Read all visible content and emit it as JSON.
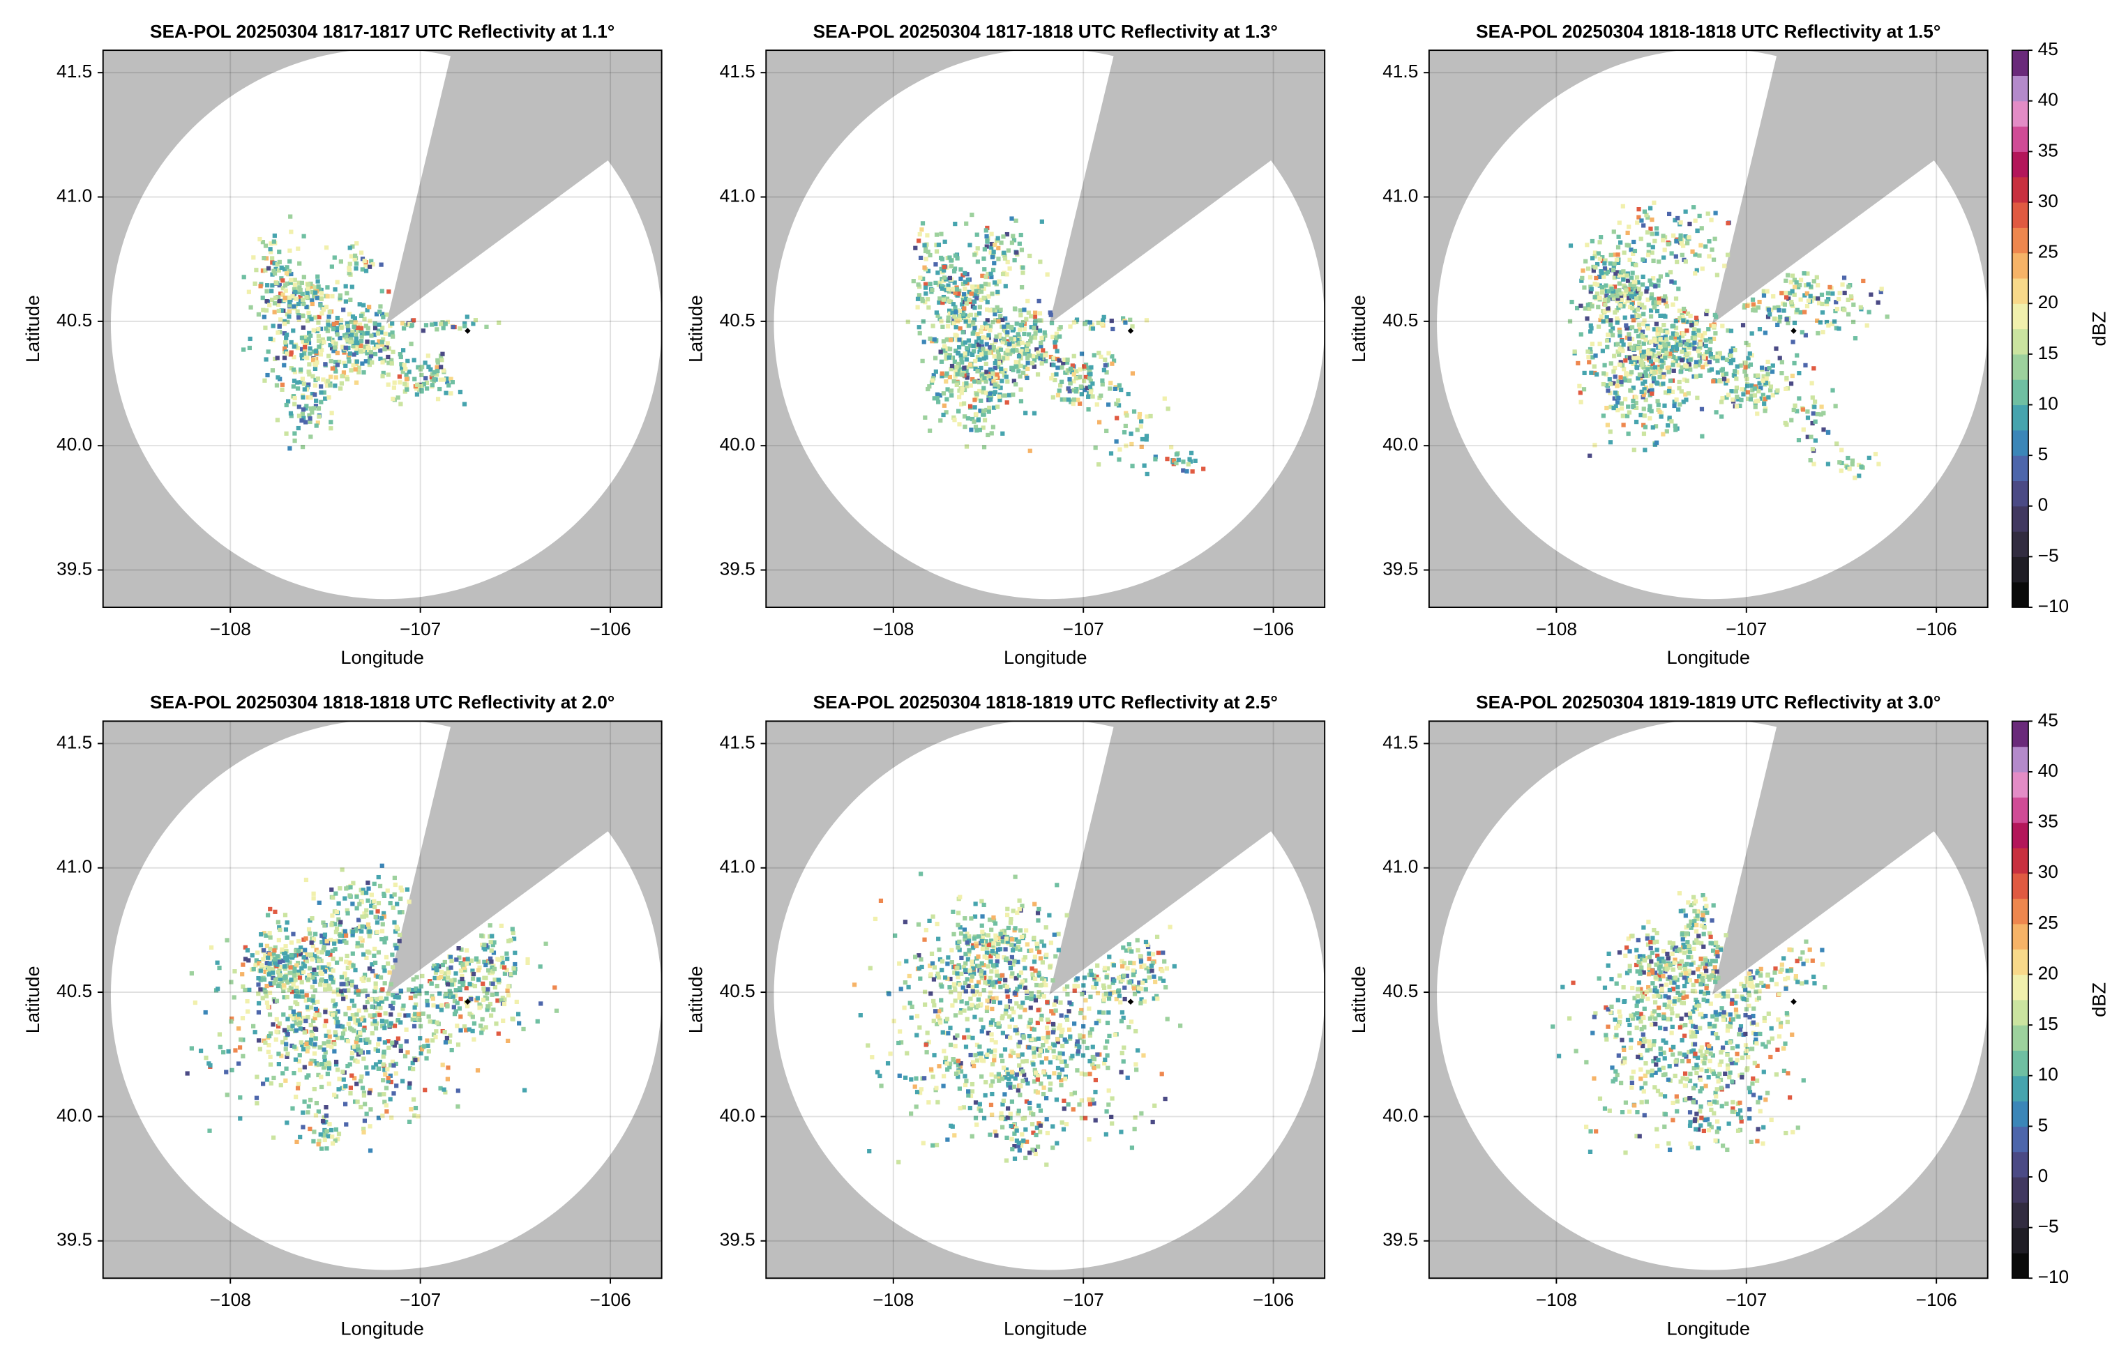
{
  "chart_data": [
    {
      "type": "radar",
      "title": "SEA-POL 20250304 1817-1817 UTC Reflectivity at 1.1°",
      "xlabel": "Longitude",
      "ylabel": "Latitude",
      "xlim": [
        -108.67,
        -105.73
      ],
      "ylim": [
        39.35,
        41.59
      ],
      "xticks": [
        {
          "value": -108,
          "label": "−108"
        },
        {
          "value": -107,
          "label": "−107"
        },
        {
          "value": -106,
          "label": "−106"
        }
      ],
      "yticks": [
        39.5,
        {
          "value": 40,
          "label": "40.0"
        },
        40.5,
        {
          "value": 41,
          "label": "41.0"
        },
        41.5
      ],
      "grid": true
    },
    {
      "type": "radar",
      "title": "SEA-POL 20250304 1817-1818 UTC Reflectivity at 1.3°",
      "xlabel": "Longitude",
      "ylabel": "Latitude",
      "xlim": [
        -108.67,
        -105.73
      ],
      "ylim": [
        39.35,
        41.59
      ],
      "xticks": [
        {
          "value": -108,
          "label": "−108"
        },
        {
          "value": -107,
          "label": "−107"
        },
        {
          "value": -106,
          "label": "−106"
        }
      ],
      "yticks": [
        39.5,
        {
          "value": 40,
          "label": "40.0"
        },
        40.5,
        {
          "value": 41,
          "label": "41.0"
        },
        41.5
      ],
      "grid": true
    },
    {
      "type": "radar",
      "title": "SEA-POL 20250304 1818-1818 UTC Reflectivity at 1.5°",
      "xlabel": "Longitude",
      "ylabel": "Latitude",
      "xlim": [
        -108.67,
        -105.73
      ],
      "ylim": [
        39.35,
        41.59
      ],
      "xticks": [
        {
          "value": -108,
          "label": "−108"
        },
        {
          "value": -107,
          "label": "−107"
        },
        {
          "value": -106,
          "label": "−106"
        }
      ],
      "yticks": [
        39.5,
        {
          "value": 40,
          "label": "40.0"
        },
        40.5,
        {
          "value": 41,
          "label": "41.0"
        },
        41.5
      ],
      "grid": true,
      "colorbar": {
        "label": "dBZ",
        "lim": [
          -10,
          45
        ],
        "ticks": [
          {
            "value": -10,
            "label": "−10"
          },
          {
            "value": -5,
            "label": "−5"
          },
          0,
          5,
          10,
          15,
          20,
          25,
          30,
          35,
          40,
          45
        ],
        "colors": [
          "#0a0a0a",
          "#1f1d25",
          "#322c40",
          "#413860",
          "#4b4a85",
          "#4d66ab",
          "#3b86b8",
          "#46a4ae",
          "#6fbfa2",
          "#9dd19d",
          "#cbe4a0",
          "#f1f0ad",
          "#f8d98a",
          "#f6b367",
          "#ee874e",
          "#e05a41",
          "#c8303f",
          "#b3165a",
          "#d04b96",
          "#e38cc6",
          "#b48acb",
          "#6a2a7a"
        ]
      }
    },
    {
      "type": "radar",
      "title": "SEA-POL 20250304 1818-1818 UTC Reflectivity at 2.0°",
      "xlabel": "Longitude",
      "ylabel": "Latitude",
      "xlim": [
        -108.67,
        -105.73
      ],
      "ylim": [
        39.35,
        41.59
      ],
      "xticks": [
        {
          "value": -108,
          "label": "−108"
        },
        {
          "value": -107,
          "label": "−107"
        },
        {
          "value": -106,
          "label": "−106"
        }
      ],
      "yticks": [
        39.5,
        {
          "value": 40,
          "label": "40.0"
        },
        40.5,
        {
          "value": 41,
          "label": "41.0"
        },
        41.5
      ],
      "grid": true
    },
    {
      "type": "radar",
      "title": "SEA-POL 20250304 1818-1819 UTC Reflectivity at 2.5°",
      "xlabel": "Longitude",
      "ylabel": "Latitude",
      "xlim": [
        -108.67,
        -105.73
      ],
      "ylim": [
        39.35,
        41.59
      ],
      "xticks": [
        {
          "value": -108,
          "label": "−108"
        },
        {
          "value": -107,
          "label": "−107"
        },
        {
          "value": -106,
          "label": "−106"
        }
      ],
      "yticks": [
        39.5,
        {
          "value": 40,
          "label": "40.0"
        },
        40.5,
        {
          "value": 41,
          "label": "41.0"
        },
        41.5
      ],
      "grid": true
    },
    {
      "type": "radar",
      "title": "SEA-POL 20250304 1819-1819 UTC Reflectivity at 3.0°",
      "xlabel": "Longitude",
      "ylabel": "Latitude",
      "xlim": [
        -108.67,
        -105.73
      ],
      "ylim": [
        39.35,
        41.59
      ],
      "xticks": [
        {
          "value": -108,
          "label": "−108"
        },
        {
          "value": -107,
          "label": "−107"
        },
        {
          "value": -106,
          "label": "−106"
        }
      ],
      "yticks": [
        39.5,
        {
          "value": 40,
          "label": "40.0"
        },
        40.5,
        {
          "value": 41,
          "label": "41.0"
        },
        41.5
      ],
      "grid": true,
      "colorbar": {
        "label": "dBZ",
        "lim": [
          -10,
          45
        ],
        "ticks": [
          {
            "value": -10,
            "label": "−10"
          },
          {
            "value": -5,
            "label": "−5"
          },
          0,
          5,
          10,
          15,
          20,
          25,
          30,
          35,
          40,
          45
        ],
        "colors": [
          "#0a0a0a",
          "#1f1d25",
          "#322c40",
          "#413860",
          "#4b4a85",
          "#4d66ab",
          "#3b86b8",
          "#46a4ae",
          "#6fbfa2",
          "#9dd19d",
          "#cbe4a0",
          "#f1f0ad",
          "#f8d98a",
          "#f6b367",
          "#ee874e",
          "#e05a41",
          "#c8303f",
          "#b3165a",
          "#d04b96",
          "#e38cc6",
          "#b48acb",
          "#6a2a7a"
        ]
      }
    }
  ]
}
